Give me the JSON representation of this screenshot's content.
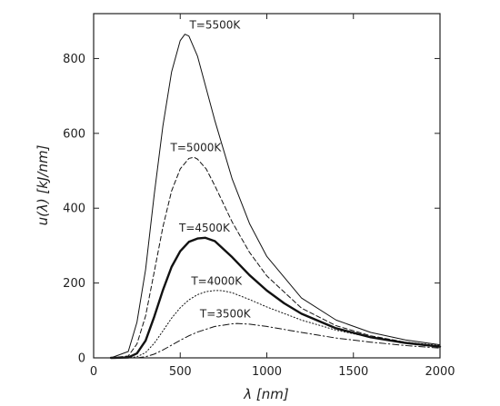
{
  "chart_data": {
    "type": "line",
    "title": "",
    "xlabel": "λ [nm]",
    "ylabel": "u(λ) [kJ/nm]",
    "xlim": [
      0,
      2000
    ],
    "ylim": [
      0,
      920
    ],
    "x_ticks": [
      0,
      500,
      1000,
      1500,
      2000
    ],
    "y_ticks": [
      0,
      200,
      400,
      600,
      800
    ],
    "grid": false,
    "legend": "none",
    "series": [
      {
        "name": "T=5500K",
        "style": "solid",
        "weight": "thin",
        "x": [
          100,
          200,
          250,
          300,
          350,
          400,
          450,
          500,
          527,
          550,
          600,
          700,
          800,
          900,
          1000,
          1200,
          1400,
          1600,
          1800,
          2000
        ],
        "y": [
          0,
          17,
          95,
          236,
          437,
          620,
          764,
          848,
          865,
          860,
          806,
          634,
          478,
          359,
          271,
          160,
          101,
          68,
          48,
          35
        ]
      },
      {
        "name": "T=5000K",
        "style": "dashed",
        "weight": "thin",
        "x": [
          100,
          200,
          250,
          300,
          350,
          400,
          450,
          500,
          550,
          580,
          600,
          650,
          700,
          800,
          900,
          1000,
          1200,
          1400,
          1600,
          1800,
          2000
        ],
        "y": [
          0,
          5,
          37,
          112,
          230,
          350,
          446,
          505,
          533,
          536,
          531,
          505,
          460,
          363,
          282,
          219,
          133,
          86,
          59,
          42,
          31
        ]
      },
      {
        "name": "T=4500K",
        "style": "solid",
        "weight": "thick",
        "x": [
          100,
          200,
          250,
          300,
          350,
          400,
          450,
          500,
          550,
          600,
          644,
          700,
          800,
          900,
          1000,
          1100,
          1200,
          1400,
          1600,
          1800,
          2000
        ],
        "y": [
          0,
          1,
          12,
          46,
          110,
          181,
          243,
          285,
          310,
          319,
          321,
          312,
          269,
          221,
          180,
          146,
          118,
          79,
          55,
          40,
          30
        ]
      },
      {
        "name": "T=4000K",
        "style": "dotted",
        "weight": "thin",
        "x": [
          100,
          200,
          250,
          300,
          350,
          400,
          450,
          500,
          550,
          600,
          650,
          700,
          725,
          750,
          800,
          900,
          1000,
          1200,
          1400,
          1600,
          1800,
          2000
        ],
        "y": [
          0,
          0,
          3,
          14,
          39,
          72,
          106,
          134,
          155,
          169,
          177,
          180,
          180,
          179,
          174,
          156,
          136,
          101,
          74,
          55,
          42,
          33
        ]
      },
      {
        "name": "T=3500K",
        "style": "dashdot",
        "weight": "thin",
        "x": [
          100,
          200,
          250,
          300,
          350,
          400,
          450,
          500,
          550,
          600,
          700,
          800,
          828,
          900,
          1000,
          1200,
          1400,
          1600,
          1800,
          2000
        ],
        "y": [
          0,
          0,
          0,
          3,
          10,
          21,
          34,
          47,
          59,
          69,
          84,
          91,
          92,
          90,
          84,
          68,
          53,
          42,
          33,
          26
        ]
      }
    ],
    "annotations": [
      {
        "text": "T=5500K",
        "x": 700,
        "y": 880
      },
      {
        "text": "T=5000K",
        "x": 590,
        "y": 552
      },
      {
        "text": "T=4500K",
        "x": 640,
        "y": 337
      },
      {
        "text": "T=4000K",
        "x": 710,
        "y": 196
      },
      {
        "text": "T=3500K",
        "x": 760,
        "y": 108
      }
    ]
  }
}
